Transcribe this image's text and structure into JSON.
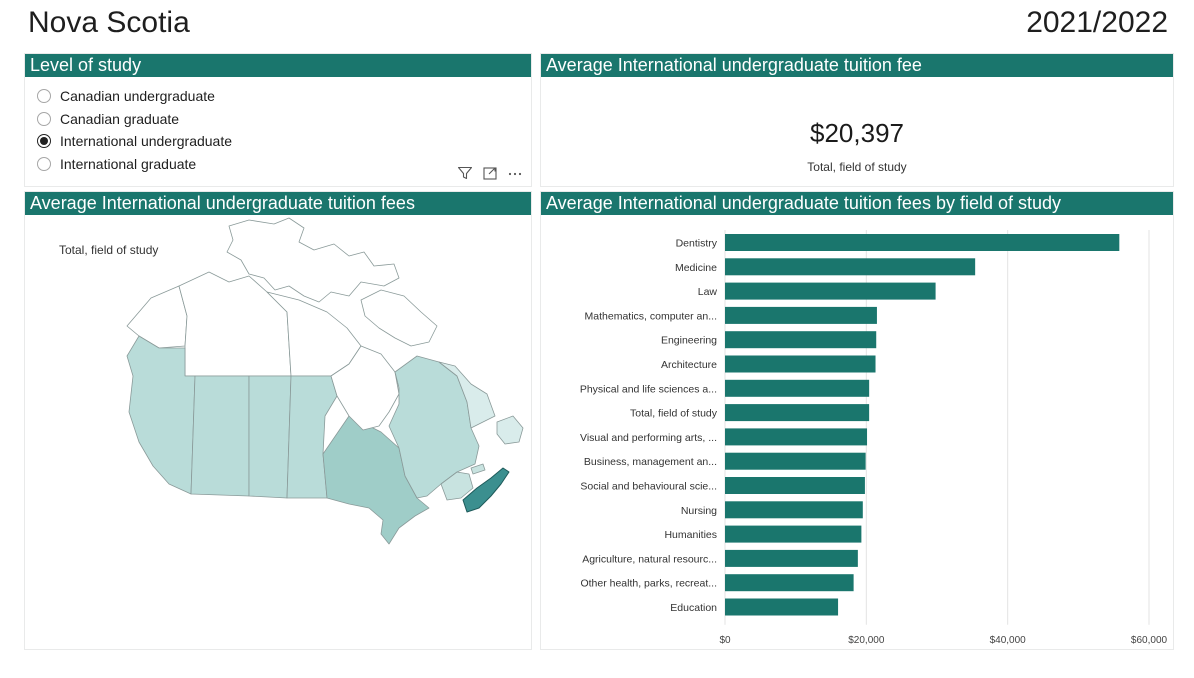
{
  "header": {
    "title": "Nova Scotia",
    "year": "2021/2022"
  },
  "level_panel": {
    "title": "Level of study",
    "options": [
      {
        "label": "Canadian undergraduate",
        "selected": false
      },
      {
        "label": "Canadian graduate",
        "selected": false
      },
      {
        "label": "International undergraduate",
        "selected": true
      },
      {
        "label": "International graduate",
        "selected": false
      }
    ],
    "icons": [
      "filter-icon",
      "focus-mode-icon",
      "more-options-icon"
    ]
  },
  "kpi_panel": {
    "title": "Average International undergraduate tuition fee",
    "value": "$20,397",
    "label": "Total, field of study"
  },
  "map_panel": {
    "title": "Average International undergraduate tuition fees",
    "label": "Total, field of study",
    "colors": {
      "low": "#b9dcd9",
      "mid": "#9fcdc8",
      "highlight": "#3b8f8f",
      "none": "#ffffff"
    }
  },
  "bar_panel": {
    "title": "Average International undergraduate tuition fees by field of study"
  },
  "chart_data": {
    "type": "bar",
    "orientation": "horizontal",
    "title": "Average International undergraduate tuition fees by field of study",
    "categories": [
      "Dentistry",
      "Medicine",
      "Law",
      "Mathematics, computer an...",
      "Engineering",
      "Architecture",
      "Physical and life sciences a...",
      "Total, field of study",
      "Visual and performing arts, ...",
      "Business, management an...",
      "Social and behavioural scie...",
      "Nursing",
      "Humanities",
      "Agriculture, natural resourc...",
      "Other health, parks, recreat...",
      "Education"
    ],
    "values": [
      55800,
      35400,
      29800,
      21500,
      21400,
      21300,
      20400,
      20397,
      20100,
      19900,
      19800,
      19500,
      19300,
      18800,
      18200,
      16000
    ],
    "xlim": [
      0,
      60000
    ],
    "xticks": [
      0,
      20000,
      40000,
      60000
    ],
    "xtick_labels": [
      "$0",
      "$20,000",
      "$40,000",
      "$60,000"
    ],
    "bar_color": "#1a766d",
    "grid": true
  }
}
